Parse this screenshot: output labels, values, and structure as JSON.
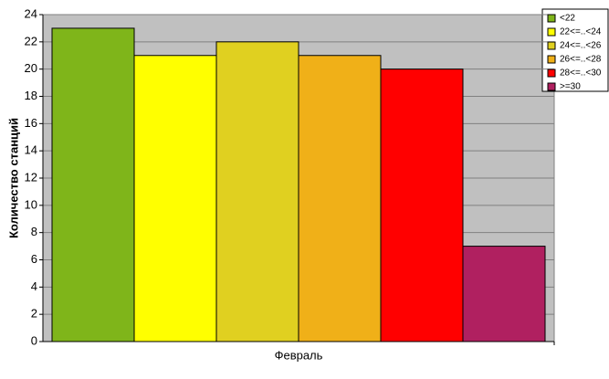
{
  "chart_data": {
    "type": "bar",
    "ylabel": "Количество станций",
    "categories": [
      "Февраль"
    ],
    "series": [
      {
        "name": "<22",
        "color": "#7fb51a",
        "values": [
          23
        ]
      },
      {
        "name": "22<=..<24",
        "color": "#ffff00",
        "values": [
          21
        ]
      },
      {
        "name": "24<=..<26",
        "color": "#e0d020",
        "values": [
          22
        ]
      },
      {
        "name": "26<=..<28",
        "color": "#f0b018",
        "values": [
          21
        ]
      },
      {
        "name": "28<=..<30",
        "color": "#ff0000",
        "values": [
          20
        ]
      },
      {
        "name": ">=30",
        "color": "#b02060",
        "values": [
          7
        ]
      }
    ],
    "ylim": [
      0,
      24
    ],
    "yticks": [
      0,
      2,
      4,
      6,
      8,
      10,
      12,
      14,
      16,
      18,
      20,
      22,
      24
    ],
    "grid": true,
    "legend": "right"
  }
}
